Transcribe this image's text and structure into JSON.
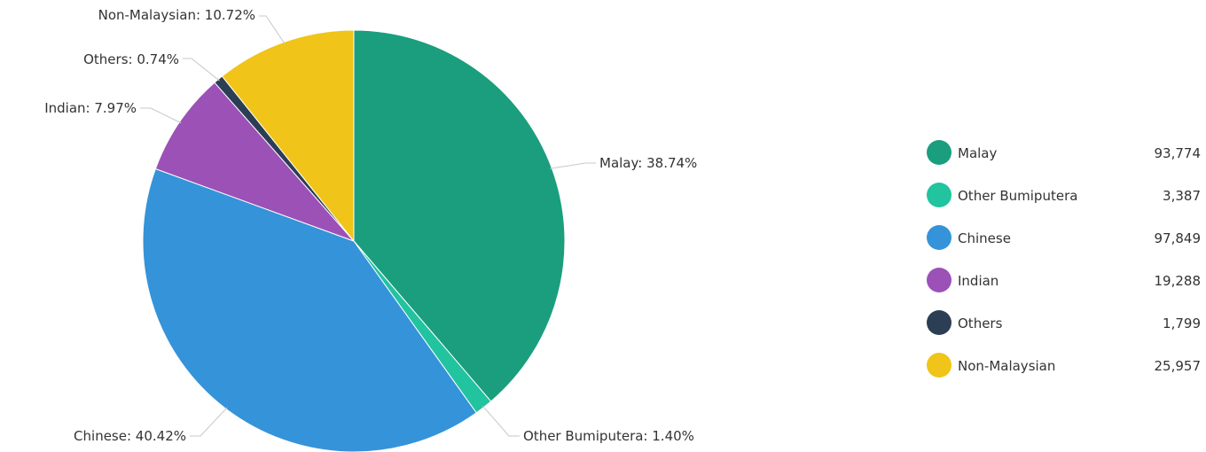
{
  "chart_data": {
    "type": "pie",
    "title": "",
    "categories": [
      "Malay",
      "Other Bumiputera",
      "Chinese",
      "Indian",
      "Others",
      "Non-Malaysian"
    ],
    "values": [
      93774,
      3387,
      97849,
      19288,
      1799,
      25957
    ],
    "percent_labels": [
      "38.74%",
      "1.40%",
      "40.42%",
      "7.97%",
      "0.74%",
      "10.72%"
    ],
    "value_labels": [
      "93,774",
      "3,387",
      "97,849",
      "19,288",
      "1,799",
      "25,957"
    ],
    "colors": [
      "#1a9e7e",
      "#22c39f",
      "#3593d9",
      "#9b51b6",
      "#2c3e54",
      "#f0c419"
    ],
    "start_angle_deg": 0,
    "direction": "clockwise",
    "legend": {
      "position": "right",
      "entries": [
        "Malay",
        "Other Bumiputera",
        "Chinese",
        "Indian",
        "Others",
        "Non-Malaysian"
      ]
    }
  }
}
